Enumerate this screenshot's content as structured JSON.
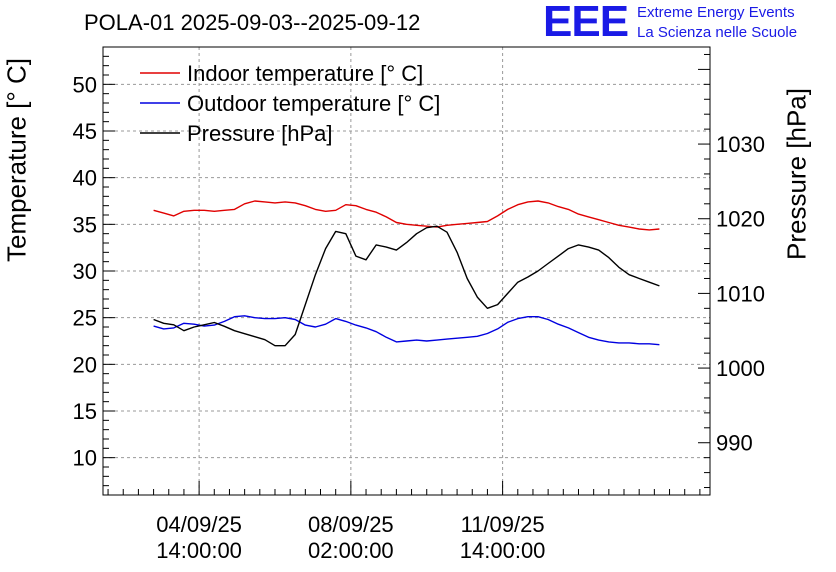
{
  "chart_data": {
    "type": "line",
    "title": "POLA-01 2025-09-03--2025-09-12",
    "ylabel_left": "Temperature [° C]",
    "ylabel_right": "Pressure [hPa]",
    "left_axis": {
      "range": [
        6,
        54
      ],
      "ticks": [
        "10",
        "15",
        "20",
        "25",
        "30",
        "35",
        "40",
        "45",
        "50"
      ]
    },
    "right_axis": {
      "range": [
        983,
        1043
      ],
      "ticks": [
        "990",
        "1000",
        "1010",
        "1020",
        "1030"
      ]
    },
    "x_axis": {
      "range": [
        0,
        240
      ],
      "ticks": [
        {
          "value": 38,
          "line1": "04/09/25",
          "line2": "14:00:00"
        },
        {
          "value": 98,
          "line1": "08/09/25",
          "line2": "02:00:00"
        },
        {
          "value": 158,
          "line1": "11/09/25",
          "line2": "14:00:00"
        }
      ]
    },
    "grid": true,
    "legend_position": "top-left",
    "series": [
      {
        "name": "Indoor temperature [° C]",
        "color": "#e00000",
        "axis": "left",
        "x": [
          0,
          4,
          8,
          12,
          16,
          20,
          24,
          28,
          32,
          36,
          40,
          44,
          48,
          52,
          56,
          60,
          64,
          68,
          72,
          76,
          80,
          84,
          88,
          92,
          96,
          100,
          104,
          108,
          112,
          116,
          120,
          124,
          128,
          132,
          136,
          140,
          144,
          148,
          152,
          156,
          160,
          164,
          168,
          172,
          176,
          180,
          184,
          188,
          192,
          196,
          200
        ],
        "y": [
          36.5,
          36.2,
          35.9,
          36.4,
          36.5,
          36.5,
          36.4,
          36.5,
          36.6,
          37.2,
          37.5,
          37.4,
          37.3,
          37.4,
          37.3,
          37.0,
          36.6,
          36.4,
          36.5,
          37.1,
          37.0,
          36.6,
          36.3,
          35.8,
          35.2,
          35.0,
          34.9,
          34.8,
          34.7,
          34.9,
          35.0,
          35.1,
          35.2,
          35.3,
          35.9,
          36.6,
          37.1,
          37.4,
          37.5,
          37.3,
          36.9,
          36.6,
          36.1,
          35.8,
          35.5,
          35.2,
          34.9,
          34.7,
          34.5,
          34.4,
          34.5
        ]
      },
      {
        "name": "Outdoor temperature [° C]",
        "color": "#0000e0",
        "axis": "left",
        "x": [
          0,
          4,
          8,
          12,
          16,
          20,
          24,
          28,
          32,
          36,
          40,
          44,
          48,
          52,
          56,
          60,
          64,
          68,
          72,
          76,
          80,
          84,
          88,
          92,
          96,
          100,
          104,
          108,
          112,
          116,
          120,
          124,
          128,
          132,
          136,
          140,
          144,
          148,
          152,
          156,
          160,
          164,
          168,
          172,
          176,
          180,
          184,
          188,
          192,
          196,
          200
        ],
        "y": [
          24.1,
          23.8,
          23.9,
          24.4,
          24.3,
          24.1,
          24.2,
          24.6,
          25.1,
          25.2,
          25.0,
          24.9,
          24.9,
          25.0,
          24.8,
          24.2,
          24.0,
          24.3,
          24.9,
          24.6,
          24.2,
          23.9,
          23.5,
          22.9,
          22.4,
          22.5,
          22.6,
          22.5,
          22.6,
          22.7,
          22.8,
          22.9,
          23.0,
          23.3,
          23.8,
          24.5,
          24.9,
          25.1,
          25.1,
          24.8,
          24.3,
          23.9,
          23.4,
          22.9,
          22.6,
          22.4,
          22.3,
          22.3,
          22.2,
          22.2,
          22.1
        ]
      },
      {
        "name": "Pressure [hPa]",
        "color": "#000000",
        "axis": "right",
        "x": [
          0,
          4,
          8,
          12,
          16,
          20,
          24,
          28,
          32,
          36,
          40,
          44,
          48,
          52,
          56,
          60,
          64,
          68,
          72,
          76,
          80,
          84,
          88,
          92,
          96,
          100,
          104,
          108,
          112,
          116,
          120,
          124,
          128,
          132,
          136,
          140,
          144,
          148,
          152,
          156,
          160,
          164,
          168,
          172,
          176,
          180,
          184,
          188,
          192,
          196,
          200
        ],
        "y": [
          1006.5,
          1006.0,
          1005.8,
          1005.0,
          1005.5,
          1005.8,
          1006.1,
          1005.6,
          1005.0,
          1004.6,
          1004.2,
          1003.8,
          1003.0,
          1003.0,
          1004.5,
          1008.5,
          1012.5,
          1016.0,
          1018.3,
          1018.0,
          1015.0,
          1014.5,
          1016.5,
          1016.2,
          1015.8,
          1016.8,
          1018.0,
          1018.8,
          1019.0,
          1018.2,
          1015.5,
          1012.0,
          1009.5,
          1008.0,
          1008.5,
          1010.0,
          1011.5,
          1012.2,
          1013.0,
          1014.0,
          1015.0,
          1016.0,
          1016.5,
          1016.2,
          1015.8,
          1014.8,
          1013.5,
          1012.5,
          1012.0,
          1011.5,
          1011.0
        ]
      }
    ],
    "x_offset": 20
  },
  "logo": {
    "text": "EEE",
    "line1": "Extreme Energy Events",
    "line2": "La Scienza nelle Scuole"
  }
}
